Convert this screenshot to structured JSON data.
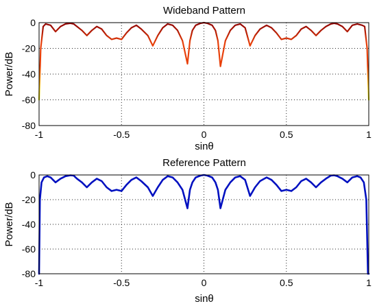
{
  "chart_data": [
    {
      "type": "line",
      "title": "Wideband Pattern",
      "xlabel": "sinθ",
      "ylabel": "Power/dB",
      "xlim": [
        -1,
        1
      ],
      "ylim": [
        -80,
        0
      ],
      "xticks": [
        "-1",
        "-0.5",
        "0",
        "0.5",
        "1"
      ],
      "yticks": [
        "0",
        "-20",
        "-40",
        "-60",
        "-80"
      ],
      "grid": true,
      "colors": {
        "top": "#8b0000",
        "mid": "#e8400a",
        "low": "#f5d000",
        "bottom": "#7fe000"
      },
      "series": [
        {
          "x": [
            -1.0,
            -0.99,
            -0.975,
            -0.96,
            -0.93,
            -0.9,
            -0.87,
            -0.84,
            -0.81,
            -0.79,
            -0.77,
            -0.74,
            -0.71,
            -0.68,
            -0.65,
            -0.62,
            -0.59,
            -0.56,
            -0.53,
            -0.5,
            -0.47,
            -0.44,
            -0.41,
            -0.38,
            -0.34,
            -0.31,
            -0.28,
            -0.25,
            -0.22,
            -0.19,
            -0.16,
            -0.13,
            -0.1,
            -0.085,
            -0.07,
            -0.05,
            -0.02,
            0.0,
            0.02,
            0.05,
            0.07,
            0.085,
            0.1,
            0.13,
            0.16,
            0.19,
            0.22,
            0.25,
            0.28,
            0.31,
            0.34,
            0.38,
            0.41,
            0.44,
            0.47,
            0.5,
            0.53,
            0.56,
            0.59,
            0.62,
            0.65,
            0.68,
            0.71,
            0.74,
            0.77,
            0.79,
            0.81,
            0.84,
            0.87,
            0.9,
            0.93,
            0.96,
            0.975,
            0.99,
            1.0
          ],
          "y": [
            -60,
            -20,
            -3,
            -1,
            -2,
            -7,
            -3,
            -1,
            -0.5,
            -1,
            -3,
            -6,
            -10,
            -6,
            -3,
            -5,
            -10,
            -13,
            -12,
            -13,
            -8,
            -4,
            -2,
            -5,
            -10,
            -18,
            -10,
            -4,
            -1,
            -2,
            -6,
            -14,
            -32,
            -14,
            -6,
            -2,
            -0.5,
            0,
            -0.5,
            -2,
            -6,
            -14,
            -34,
            -14,
            -6,
            -2,
            -1,
            -4,
            -18,
            -10,
            -5,
            -2,
            -4,
            -8,
            -13,
            -12,
            -13,
            -10,
            -5,
            -3,
            -6,
            -10,
            -6,
            -3,
            -1,
            -0.5,
            -1,
            -3,
            -7,
            -2,
            -1,
            -2,
            -3,
            -20,
            -60
          ]
        }
      ]
    },
    {
      "type": "line",
      "title": "Reference Pattern",
      "xlabel": "sinθ",
      "ylabel": "Power/dB",
      "xlim": [
        -1,
        1
      ],
      "ylim": [
        -80,
        0
      ],
      "xticks": [
        "-1",
        "-0.5",
        "0",
        "0.5",
        "1"
      ],
      "yticks": [
        "0",
        "-20",
        "-40",
        "-60",
        "-80"
      ],
      "grid": true,
      "colors": {
        "line": "#0010c0"
      },
      "series": [
        {
          "x": [
            -1.0,
            -0.995,
            -0.985,
            -0.97,
            -0.95,
            -0.93,
            -0.9,
            -0.87,
            -0.84,
            -0.81,
            -0.79,
            -0.77,
            -0.74,
            -0.71,
            -0.68,
            -0.65,
            -0.62,
            -0.59,
            -0.56,
            -0.53,
            -0.5,
            -0.47,
            -0.44,
            -0.41,
            -0.38,
            -0.34,
            -0.31,
            -0.28,
            -0.25,
            -0.22,
            -0.19,
            -0.16,
            -0.13,
            -0.1,
            -0.085,
            -0.07,
            -0.05,
            -0.02,
            0.0,
            0.02,
            0.05,
            0.07,
            0.085,
            0.1,
            0.13,
            0.16,
            0.19,
            0.22,
            0.25,
            0.28,
            0.31,
            0.34,
            0.38,
            0.41,
            0.44,
            0.47,
            0.5,
            0.53,
            0.56,
            0.59,
            0.62,
            0.65,
            0.68,
            0.71,
            0.74,
            0.77,
            0.79,
            0.81,
            0.84,
            0.87,
            0.9,
            0.93,
            0.95,
            0.97,
            0.985,
            0.995,
            1.0
          ],
          "y": [
            -80,
            -20,
            -6,
            -2,
            -1,
            -2,
            -6,
            -3,
            -1,
            -0.3,
            -0.5,
            -3,
            -6,
            -10,
            -6,
            -3,
            -5,
            -10,
            -13,
            -12,
            -13,
            -8,
            -4,
            -2,
            -5,
            -10,
            -17,
            -10,
            -4,
            -1,
            -2,
            -6,
            -12,
            -27,
            -12,
            -6,
            -2,
            -0.5,
            0,
            -0.5,
            -2,
            -6,
            -12,
            -27,
            -12,
            -6,
            -2,
            -1,
            -4,
            -17,
            -10,
            -5,
            -2,
            -4,
            -8,
            -13,
            -12,
            -13,
            -10,
            -5,
            -3,
            -6,
            -10,
            -6,
            -3,
            -0.5,
            -0.3,
            -1,
            -3,
            -6,
            -2,
            -1,
            -2,
            -6,
            -20,
            -80,
            -80
          ]
        }
      ]
    }
  ]
}
